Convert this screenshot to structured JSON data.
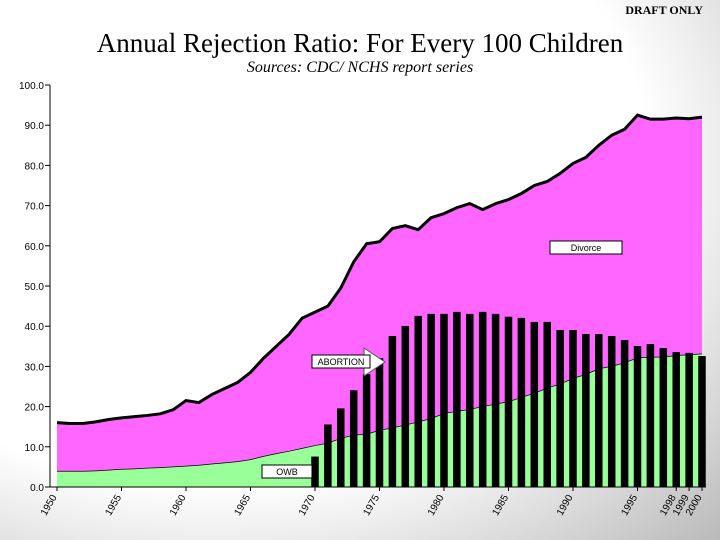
{
  "chart_data": {
    "type": "area",
    "title": "Annual Rejection Ratio: For Every 100 Children",
    "subtitle": "Sources: CDC/ NCHS report series",
    "draft_label": "DRAFT ONLY",
    "stacked": true,
    "x": [
      1950,
      1951,
      1952,
      1953,
      1954,
      1955,
      1956,
      1957,
      1958,
      1959,
      1960,
      1961,
      1962,
      1963,
      1964,
      1965,
      1966,
      1967,
      1968,
      1969,
      1970,
      1971,
      1972,
      1973,
      1974,
      1975,
      1976,
      1977,
      1978,
      1979,
      1980,
      1981,
      1982,
      1983,
      1984,
      1985,
      1986,
      1987,
      1988,
      1989,
      1990,
      1991,
      1992,
      1993,
      1994,
      1995,
      1996,
      1997,
      1998,
      1999,
      2000
    ],
    "series": [
      {
        "name": "OWB",
        "color": "#99ff99",
        "stack": true,
        "values": [
          4,
          4,
          4,
          4.1,
          4.3,
          4.5,
          4.6,
          4.8,
          4.9,
          5.1,
          5.3,
          5.5,
          5.8,
          6.1,
          6.4,
          6.9,
          7.7,
          8.4,
          9,
          9.7,
          10.4,
          11,
          12.2,
          13,
          13.2,
          14.2,
          14.8,
          15.5,
          16.3,
          17.1,
          18.4,
          18.9,
          19.4,
          20.1,
          20.7,
          21.3,
          22.4,
          23.4,
          24.7,
          25.7,
          27.1,
          28.1,
          29.5,
          30.1,
          31,
          32.2,
          32.4,
          32.4,
          32.8,
          33,
          33.2
        ]
      },
      {
        "name": "Divorce",
        "color": "#ff66ff",
        "stack": true,
        "values": [
          12,
          11.8,
          11.8,
          12.1,
          12.5,
          12.7,
          12.9,
          13,
          13.3,
          14.1,
          16.2,
          15.5,
          17.2,
          18.4,
          19.6,
          21.6,
          24.3,
          26.6,
          29,
          32.3,
          33.1,
          34,
          37.3,
          43,
          47.3,
          46.8,
          49.5,
          49.5,
          47.7,
          49.9,
          49.6,
          50.6,
          51.1,
          48.9,
          49.8,
          50.2,
          50.6,
          51.6,
          51.3,
          52.3,
          53.4,
          53.9,
          55.5,
          57.4,
          58,
          60.3,
          59.1,
          59.1,
          59,
          58.6,
          58.8
        ]
      },
      {
        "name": "ABORTION",
        "color": "#000000",
        "type": "bar",
        "values": [
          null,
          null,
          null,
          null,
          null,
          null,
          null,
          null,
          null,
          null,
          null,
          null,
          null,
          null,
          null,
          null,
          null,
          null,
          null,
          null,
          7.5,
          15.5,
          19.5,
          24,
          28,
          32,
          37.5,
          40,
          42.5,
          43,
          43,
          43.5,
          43,
          43.5,
          43,
          42.3,
          42,
          41,
          41,
          39,
          39,
          38,
          38,
          37.5,
          36.5,
          35,
          35.5,
          34.5,
          33.5,
          33.3,
          32.5
        ]
      }
    ],
    "xlim": [
      1950,
      2000
    ],
    "xticks": [
      1950,
      1955,
      1960,
      1965,
      1970,
      1975,
      1980,
      1985,
      1990,
      1995,
      1998,
      1999,
      2000
    ],
    "ylim": [
      0,
      100
    ],
    "yticks": [
      {
        "value": 0,
        "label": "0.0"
      },
      {
        "value": 10,
        "label": "10.0"
      },
      {
        "value": 20,
        "label": "20.0"
      },
      {
        "value": 30,
        "label": "30.0"
      },
      {
        "value": 40,
        "label": "40.0"
      },
      {
        "value": 50,
        "label": "50.0"
      },
      {
        "value": 60,
        "label": "60.0"
      },
      {
        "value": 70,
        "label": "70.0"
      },
      {
        "value": 80,
        "label": "80.0"
      },
      {
        "value": 90,
        "label": "90.0"
      },
      {
        "value": 100,
        "label": "100.0"
      }
    ],
    "grid": false
  }
}
